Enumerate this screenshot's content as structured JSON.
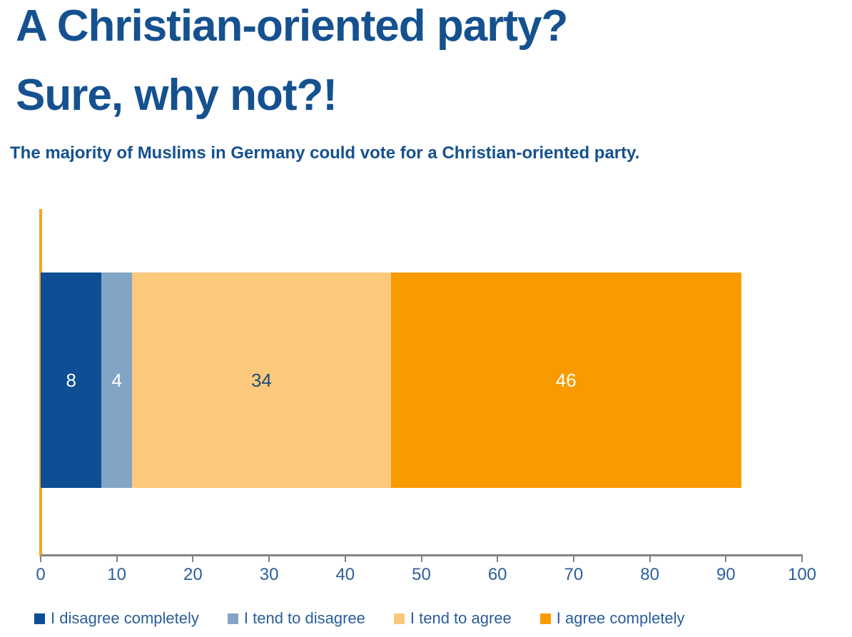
{
  "header": {
    "title_line1": "A Christian-oriented party?",
    "title_line2": "Sure, why not?!",
    "subtitle": "The majority of Muslims in Germany could vote for a Christian-oriented party."
  },
  "colors": {
    "title_text": "#15518f",
    "axis_line": "#838383",
    "tick_label_text": "#2c5f98",
    "legend_text": "#2a5e99",
    "zero_line": "#f6a423"
  },
  "chart_data": {
    "type": "bar",
    "orientation": "horizontal",
    "stacked": true,
    "title": "A Christian-oriented party? Sure, why not?!",
    "subtitle": "The majority of Muslims in Germany could vote for a Christian-oriented party.",
    "categories": [
      ""
    ],
    "series": [
      {
        "name": "I disagree completely",
        "values": [
          8
        ],
        "color": "#0d4e94",
        "label_color": "#ffffff"
      },
      {
        "name": "I tend to disagree",
        "values": [
          4
        ],
        "color": "#82a5c6",
        "label_color": "#ffffff"
      },
      {
        "name": "I tend to agree",
        "values": [
          34
        ],
        "color": "#fbc87c",
        "label_color": "#1d4d77"
      },
      {
        "name": "I agree completely",
        "values": [
          46
        ],
        "color": "#f99b00",
        "label_color": "#ffffff"
      }
    ],
    "xlim": [
      0,
      100
    ],
    "x_ticks": [
      0,
      10,
      20,
      30,
      40,
      50,
      60,
      70,
      80,
      90,
      100
    ],
    "grid": false,
    "legend_position": "bottom"
  }
}
